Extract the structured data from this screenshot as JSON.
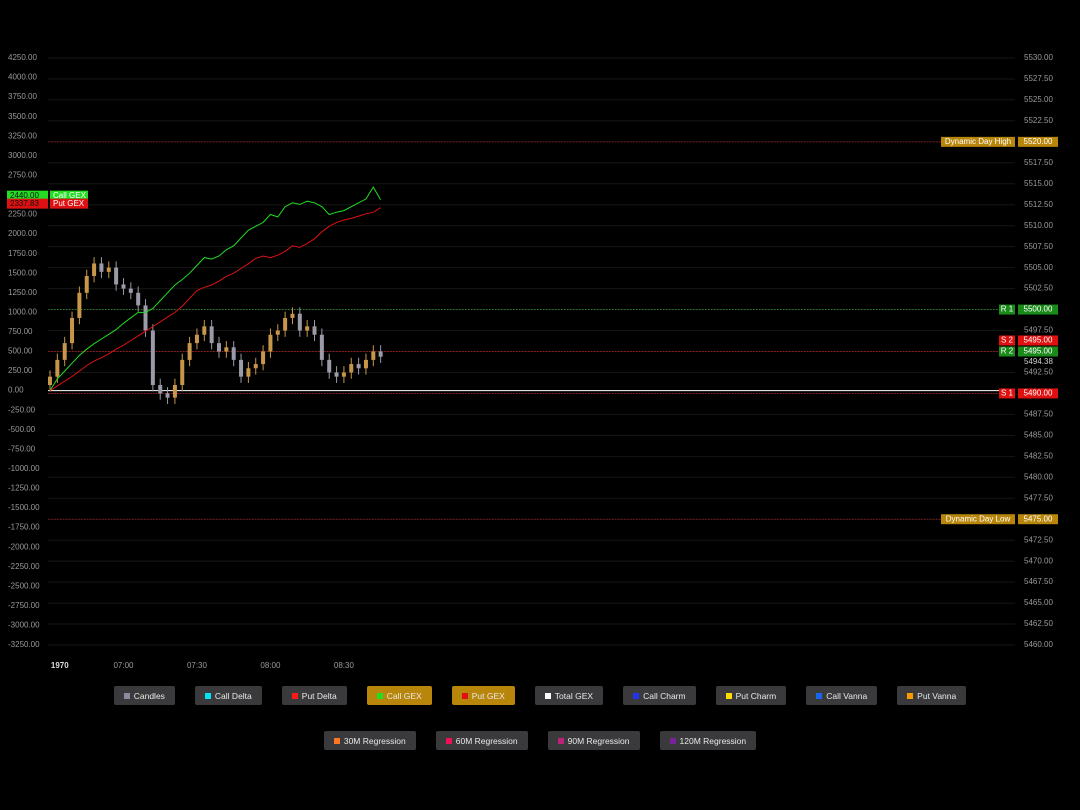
{
  "chart_data": {
    "type": "candlestick",
    "x": [
      390,
      393,
      396,
      399,
      402,
      405,
      408,
      411,
      414,
      417,
      420,
      423,
      426,
      429,
      432,
      435,
      438,
      441,
      444,
      447,
      450,
      453,
      456,
      459,
      462,
      465,
      468,
      471,
      474,
      477,
      480,
      483,
      486,
      489,
      492,
      495,
      498,
      501,
      504,
      507,
      510,
      513,
      516,
      519,
      522,
      525
    ],
    "xlim": [
      390,
      784
    ],
    "xticks": [
      {
        "value": 394,
        "label": "1970"
      },
      {
        "value": 420,
        "label": "07:00"
      },
      {
        "value": 450,
        "label": "07:30"
      },
      {
        "value": 480,
        "label": "08:00"
      },
      {
        "value": 510,
        "label": "08:30"
      }
    ],
    "candles": {
      "up_color": "#c8964b",
      "down_color": "#9a9aa8",
      "axis": "y2",
      "open": [
        5491,
        5492,
        5494,
        5496,
        5499,
        5502,
        5504,
        5505.5,
        5504.5,
        5505,
        5503,
        5502.5,
        5502,
        5500.5,
        5497.5,
        5491,
        5490,
        5489.5,
        5491,
        5494,
        5496,
        5497,
        5498,
        5496,
        5495,
        5495.5,
        5494,
        5492,
        5493,
        5493.5,
        5495,
        5497,
        5497.5,
        5499,
        5499.5,
        5497.5,
        5498,
        5497,
        5494,
        5492.5,
        5492,
        5492.5,
        5493.5,
        5493,
        5494,
        5495
      ],
      "high": [
        5492.75,
        5494.75,
        5496.75,
        5499.75,
        5502.75,
        5504.75,
        5506.25,
        5506.25,
        5505.75,
        5505.75,
        5503.75,
        5503.25,
        5502.75,
        5501.25,
        5498.25,
        5491.75,
        5490.75,
        5491.75,
        5494.75,
        5496.75,
        5497.75,
        5498.75,
        5498.75,
        5496.75,
        5496.25,
        5496.25,
        5494.75,
        5493.75,
        5494.25,
        5495.75,
        5497.75,
        5498.25,
        5499.75,
        5500.25,
        5500.25,
        5498.75,
        5498.75,
        5497.75,
        5494.75,
        5493.25,
        5493.25,
        5494.25,
        5494.25,
        5494.75,
        5495.75,
        5495.75
      ],
      "low": [
        5490.25,
        5491.25,
        5493.25,
        5495.25,
        5498.25,
        5501.25,
        5503.25,
        5503.75,
        5503.75,
        5502.25,
        5501.75,
        5501.25,
        5499.75,
        5496.75,
        5490.25,
        5489.25,
        5488.75,
        5488.75,
        5490.25,
        5493.25,
        5495.25,
        5496.25,
        5495.25,
        5494.25,
        5494.25,
        5493.25,
        5491.25,
        5491.25,
        5492.25,
        5492.75,
        5494.25,
        5496.25,
        5496.75,
        5498.25,
        5496.75,
        5496.75,
        5496.25,
        5493.25,
        5491.75,
        5491.25,
        5491.25,
        5491.75,
        5492.25,
        5492.25,
        5493.25,
        5493.63
      ],
      "close": [
        5492,
        5494,
        5496,
        5499,
        5502,
        5504,
        5505.5,
        5504.5,
        5505,
        5503,
        5502.5,
        5502,
        5500.5,
        5497.5,
        5491,
        5490,
        5489.5,
        5491,
        5494,
        5496,
        5497,
        5498,
        5496,
        5495,
        5495.5,
        5494,
        5492,
        5493,
        5493.5,
        5495,
        5497,
        5497.5,
        5499,
        5499.5,
        5497.5,
        5498,
        5497,
        5494,
        5492.5,
        5492,
        5492.5,
        5493.5,
        5493,
        5494,
        5495,
        5494.38
      ]
    },
    "series": [
      {
        "name": "Call GEX",
        "color": "#22dd22",
        "last_label": "2440.00",
        "values": [
          0,
          150,
          250,
          350,
          450,
          530,
          600,
          660,
          720,
          780,
          860,
          930,
          1000,
          1000,
          1050,
          1150,
          1250,
          1350,
          1420,
          1500,
          1600,
          1700,
          1680,
          1720,
          1800,
          1850,
          1950,
          2050,
          2100,
          2150,
          2250,
          2220,
          2350,
          2400,
          2380,
          2420,
          2400,
          2350,
          2250,
          2280,
          2300,
          2350,
          2400,
          2450,
          2600,
          2440
        ]
      },
      {
        "name": "Put GEX",
        "color": "#dd1111",
        "last_label": "2337.83",
        "values": [
          0,
          60,
          120,
          180,
          250,
          320,
          380,
          420,
          470,
          530,
          580,
          640,
          700,
          760,
          820,
          880,
          940,
          1000,
          1080,
          1180,
          1280,
          1320,
          1350,
          1400,
          1460,
          1500,
          1560,
          1620,
          1690,
          1720,
          1700,
          1730,
          1780,
          1850,
          1830,
          1880,
          1940,
          2030,
          2100,
          2150,
          2180,
          2200,
          2230,
          2260,
          2280,
          2337.83
        ]
      }
    ],
    "ylim": [
      -3250,
      4250
    ],
    "yticks": [
      {
        "value": 4250,
        "label": "4250.00"
      },
      {
        "value": 4000,
        "label": "4000.00"
      },
      {
        "value": 3750,
        "label": "3750.00"
      },
      {
        "value": 3500,
        "label": "3500.00"
      },
      {
        "value": 3250,
        "label": "3250.00"
      },
      {
        "value": 3000,
        "label": "3000.00"
      },
      {
        "value": 2750,
        "label": "2750.00"
      },
      {
        "value": 2500,
        "label": "2500.00"
      },
      {
        "value": 2250,
        "label": "2250.00"
      },
      {
        "value": 2000,
        "label": "2000.00"
      },
      {
        "value": 1750,
        "label": "1750.00"
      },
      {
        "value": 1500,
        "label": "1500.00"
      },
      {
        "value": 1250,
        "label": "1250.00"
      },
      {
        "value": 1000,
        "label": "1000.00"
      },
      {
        "value": 750,
        "label": "750.00"
      },
      {
        "value": 500,
        "label": "500.00"
      },
      {
        "value": 250,
        "label": "250.00"
      },
      {
        "value": 0,
        "label": "0.00"
      },
      {
        "value": -250,
        "label": "-250.00"
      },
      {
        "value": -500,
        "label": "-500.00"
      },
      {
        "value": -750,
        "label": "-750.00"
      },
      {
        "value": -1000,
        "label": "-1000.00"
      },
      {
        "value": -1250,
        "label": "-1250.00"
      },
      {
        "value": -1500,
        "label": "-1500.00"
      },
      {
        "value": -1750,
        "label": "-1750.00"
      },
      {
        "value": -2000,
        "label": "-2000.00"
      },
      {
        "value": -2250,
        "label": "-2250.00"
      },
      {
        "value": -2500,
        "label": "-2500.00"
      },
      {
        "value": -2750,
        "label": "-2750.00"
      },
      {
        "value": -3000,
        "label": "-3000.00"
      },
      {
        "value": -3250,
        "label": "-3250.00"
      }
    ],
    "y2lim": [
      5460,
      5530
    ],
    "y2ticks": [
      {
        "value": 5530,
        "label": "5530.00"
      },
      {
        "value": 5527.5,
        "label": "5527.50"
      },
      {
        "value": 5525,
        "label": "5525.00"
      },
      {
        "value": 5522.5,
        "label": "5522.50"
      },
      {
        "value": 5520,
        "label": "5520.00"
      },
      {
        "value": 5517.5,
        "label": "5517.50"
      },
      {
        "value": 5515,
        "label": "5515.00"
      },
      {
        "value": 5512.5,
        "label": "5512.50"
      },
      {
        "value": 5510,
        "label": "5510.00"
      },
      {
        "value": 5507.5,
        "label": "5507.50"
      },
      {
        "value": 5505,
        "label": "5505.00"
      },
      {
        "value": 5502.5,
        "label": "5502.50"
      },
      {
        "value": 5500,
        "label": "5500.00"
      },
      {
        "value": 5497.5,
        "label": "5497.50"
      },
      {
        "value": 5495,
        "label": "5495.00"
      },
      {
        "value": 5492.5,
        "label": "5492.50"
      },
      {
        "value": 5490,
        "label": "5490.00"
      },
      {
        "value": 5487.5,
        "label": "5487.50"
      },
      {
        "value": 5485,
        "label": "5485.00"
      },
      {
        "value": 5482.5,
        "label": "5482.50"
      },
      {
        "value": 5480,
        "label": "5480.00"
      },
      {
        "value": 5477.5,
        "label": "5477.50"
      },
      {
        "value": 5475,
        "label": "5475.00"
      },
      {
        "value": 5472.5,
        "label": "5472.50"
      },
      {
        "value": 5470,
        "label": "5470.00"
      },
      {
        "value": 5467.5,
        "label": "5467.50"
      },
      {
        "value": 5465,
        "label": "5465.00"
      },
      {
        "value": 5462.5,
        "label": "5462.50"
      },
      {
        "value": 5460,
        "label": "5460.00"
      }
    ],
    "grid": true,
    "last_price": {
      "value": 5494.38,
      "label": "5494.38"
    },
    "levels": [
      {
        "name": "Dynamic Day High",
        "value": 5520,
        "label": "5520.00",
        "color": "#b8860b",
        "line_color": "#aa1a1a"
      },
      {
        "name": "R 1",
        "value": 5500,
        "label": "5500.00",
        "color": "#1a8a1a",
        "line_color": "#2a8a2a"
      },
      {
        "name": "R 2",
        "value": 5495,
        "label": "5495.00",
        "color": "#1a8a1a",
        "line_color": "#aa1a1a"
      },
      {
        "name": "S 2",
        "value": 5495,
        "label": "5495.00",
        "color": "#e01010",
        "line_color": "#aa1a1a"
      },
      {
        "name": "S 1",
        "value": 5490,
        "label": "5490.00",
        "color": "#e01010",
        "line_color": "#aa1a1a"
      },
      {
        "name": "Dynamic Day Low",
        "value": 5475,
        "label": "5475.00",
        "color": "#b8860b",
        "line_color": "#aa1a1a"
      }
    ]
  },
  "controls": [
    [
      {
        "label": "Candles",
        "color": "#8a8aa0",
        "active": false
      },
      {
        "label": "Call Delta",
        "color": "#00e5ee",
        "active": false
      },
      {
        "label": "Put Delta",
        "color": "#ff1a1a",
        "active": false
      },
      {
        "label": "Call GEX",
        "color": "#22dd22",
        "active": true
      },
      {
        "label": "Put GEX",
        "color": "#dd1111",
        "active": true
      },
      {
        "label": "Total GEX",
        "color": "#ffffff",
        "active": false
      },
      {
        "label": "Call Charm",
        "color": "#2233ee",
        "active": false
      },
      {
        "label": "Put Charm",
        "color": "#ffdd00",
        "active": false
      },
      {
        "label": "Call Vanna",
        "color": "#1a66ee",
        "active": false
      },
      {
        "label": "Put Vanna",
        "color": "#ff9900",
        "active": false
      }
    ],
    [
      {
        "label": "30M Regression",
        "color": "#ff7722",
        "active": false
      },
      {
        "label": "60M Regression",
        "color": "#ee1155",
        "active": false
      },
      {
        "label": "90M Regression",
        "color": "#bb2277",
        "active": false
      },
      {
        "label": "120M Regression",
        "color": "#772299",
        "active": false
      }
    ]
  ]
}
